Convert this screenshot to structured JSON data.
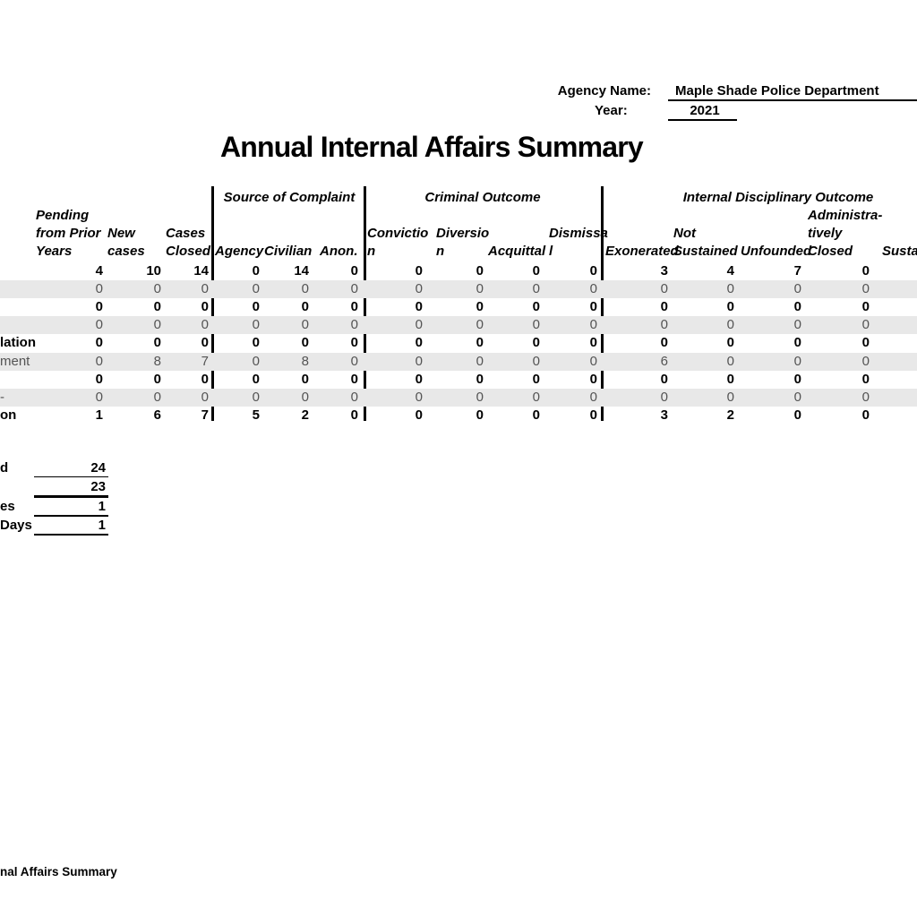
{
  "form": {
    "agency_label": "Agency Name:",
    "agency_value": "Maple Shade Police Department",
    "year_label": "Year:",
    "year_value": "2021"
  },
  "title": "Annual Internal Affairs Summary",
  "table": {
    "group_headers": [
      {
        "label": "Source of Complaint"
      },
      {
        "label": "Criminal Outcome"
      },
      {
        "label": "Internal Disciplinary Outcome"
      }
    ],
    "columns": [
      {
        "id": "pending_prior_years",
        "lines": [
          "Pending",
          "from Prior",
          "Years"
        ]
      },
      {
        "id": "new_cases",
        "lines": [
          "New",
          "cases"
        ]
      },
      {
        "id": "cases_closed",
        "lines": [
          "Cases",
          "Closed"
        ]
      },
      {
        "id": "agency",
        "lines": [
          "Agency"
        ]
      },
      {
        "id": "civilian",
        "lines": [
          "Civilian"
        ]
      },
      {
        "id": "anonymous",
        "lines": [
          "Anon."
        ]
      },
      {
        "id": "conviction",
        "lines": [
          "Convictio",
          "n"
        ]
      },
      {
        "id": "diversion",
        "lines": [
          "Diversio",
          "n"
        ]
      },
      {
        "id": "acquittal",
        "lines": [
          "Acquittal"
        ]
      },
      {
        "id": "dismissal",
        "lines": [
          "Dismissa",
          "l"
        ]
      },
      {
        "id": "exonerated",
        "lines": [
          "Exonerated"
        ]
      },
      {
        "id": "not_sustained",
        "lines": [
          "Not",
          "Sustained"
        ]
      },
      {
        "id": "unfounded",
        "lines": [
          "Unfounded"
        ]
      },
      {
        "id": "administratively_closed",
        "lines": [
          "Administra-",
          "tively",
          "Closed"
        ]
      },
      {
        "id": "sustained_clipped",
        "lines": [
          "Sustain"
        ]
      }
    ],
    "rows": [
      {
        "label_fragment": "",
        "style": "bold",
        "values": [
          4,
          10,
          14,
          0,
          14,
          0,
          0,
          0,
          0,
          0,
          3,
          4,
          7,
          0
        ]
      },
      {
        "label_fragment": "",
        "style": "gray",
        "values": [
          0,
          0,
          0,
          0,
          0,
          0,
          0,
          0,
          0,
          0,
          0,
          0,
          0,
          0
        ]
      },
      {
        "label_fragment": "",
        "style": "bold",
        "values": [
          0,
          0,
          0,
          0,
          0,
          0,
          0,
          0,
          0,
          0,
          0,
          0,
          0,
          0
        ]
      },
      {
        "label_fragment": "",
        "style": "gray",
        "values": [
          0,
          0,
          0,
          0,
          0,
          0,
          0,
          0,
          0,
          0,
          0,
          0,
          0,
          0
        ]
      },
      {
        "label_fragment": "lation",
        "style": "bold",
        "values": [
          0,
          0,
          0,
          0,
          0,
          0,
          0,
          0,
          0,
          0,
          0,
          0,
          0,
          0
        ]
      },
      {
        "label_fragment": "ment",
        "style": "gray",
        "values": [
          0,
          8,
          7,
          0,
          8,
          0,
          0,
          0,
          0,
          0,
          6,
          0,
          0,
          0
        ]
      },
      {
        "label_fragment": "",
        "style": "bold",
        "values": [
          0,
          0,
          0,
          0,
          0,
          0,
          0,
          0,
          0,
          0,
          0,
          0,
          0,
          0
        ]
      },
      {
        "label_fragment": "-",
        "style": "gray",
        "values": [
          0,
          0,
          0,
          0,
          0,
          0,
          0,
          0,
          0,
          0,
          0,
          0,
          0,
          0
        ]
      },
      {
        "label_fragment": "on",
        "style": "bold",
        "values": [
          1,
          6,
          7,
          5,
          2,
          0,
          0,
          0,
          0,
          0,
          3,
          2,
          0,
          0
        ]
      }
    ]
  },
  "summary": {
    "rows": [
      {
        "label_fragment": "d",
        "value": "24",
        "rule": "thin"
      },
      {
        "label_fragment": "",
        "value": "23",
        "rule": "thick"
      },
      {
        "label_fragment": "es",
        "value": "1",
        "rule": "medium"
      },
      {
        "label_fragment": "Days",
        "value": "1",
        "rule": "medium"
      }
    ]
  },
  "footer": {
    "sheet_name_fragment": "nal Affairs Summary"
  },
  "colors": {
    "band_gray": "#e8e8e8",
    "muted_text": "#545454",
    "text": "#000000"
  }
}
